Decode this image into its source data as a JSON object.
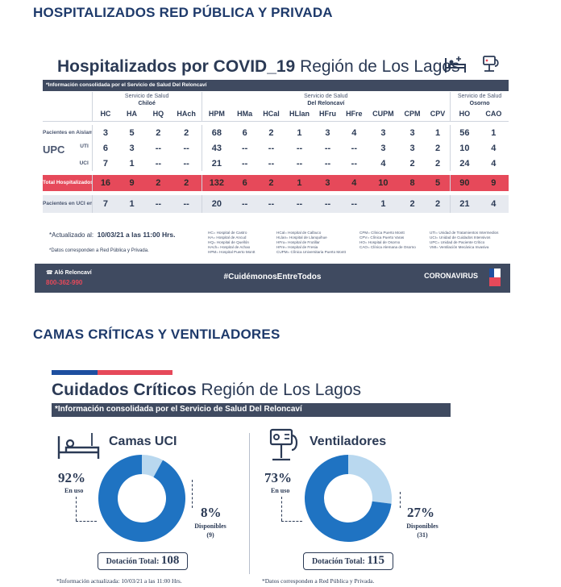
{
  "headings": {
    "hospitalized": "HOSPITALIZADOS RED PÚBLICA Y PRIVADA",
    "critical": "CAMAS CRÍTICAS Y VENTILADORES"
  },
  "card1": {
    "title_bold": "Hospitalizados por COVID_19",
    "title_light": " Región de Los Lagos",
    "info": "*Información consolidada por el Servicio de Salud Del Reloncaví",
    "services": [
      {
        "name": "Servicio de Salud",
        "sub": "Chiloé"
      },
      {
        "name": "Servicio de Salud",
        "sub": "Del Reloncaví"
      },
      {
        "name": "Servicio de Salud",
        "sub": "Osorno"
      }
    ],
    "columns": [
      "HC",
      "HA",
      "HQ",
      "HAch",
      "HPM",
      "HMa",
      "HCal",
      "HLlan",
      "HFru",
      "HFre",
      "CUPM",
      "CPM",
      "CPV",
      "HO",
      "CAO"
    ],
    "rows": {
      "aislamiento": {
        "label": "Pacientes en Aislamiento",
        "values": [
          "3",
          "5",
          "2",
          "2",
          "68",
          "6",
          "2",
          "1",
          "3",
          "4",
          "3",
          "3",
          "1",
          "56",
          "1"
        ]
      },
      "upc_label": "UPC",
      "uti": {
        "label": "UTI",
        "values": [
          "6",
          "3",
          "--",
          "--",
          "43",
          "--",
          "--",
          "--",
          "--",
          "--",
          "3",
          "3",
          "2",
          "10",
          "4"
        ]
      },
      "uci": {
        "label": "UCI",
        "values": [
          "7",
          "1",
          "--",
          "--",
          "21",
          "--",
          "--",
          "--",
          "--",
          "--",
          "4",
          "2",
          "2",
          "24",
          "4"
        ]
      },
      "total": {
        "label": "Total Hospitalizados",
        "values": [
          "16",
          "9",
          "2",
          "2",
          "132",
          "6",
          "2",
          "1",
          "3",
          "4",
          "10",
          "8",
          "5",
          "90",
          "9"
        ]
      },
      "vmi": {
        "label": "Pacientes en UCI en VMI",
        "values": [
          "7",
          "1",
          "--",
          "--",
          "20",
          "--",
          "--",
          "--",
          "--",
          "--",
          "1",
          "2",
          "2",
          "21",
          "4"
        ]
      }
    },
    "updated_label": "*Actualizado al:",
    "updated_value": "10/03/21 a las 11:00 Hrs.",
    "note": "*Datos corresponden a Red Pública y Privada.",
    "legend": [
      [
        "HC= Hospital de Castro",
        "HA= Hospital de Ancud",
        "HQ= Hospital de Quellón",
        "HAch= Hospital de Achao",
        "HPM= Hospital Puerto Montt"
      ],
      [
        "HCal= Hospital de Calbuco",
        "HLlan= Hospital de Llanquihue",
        "HFru= Hospital de Frutillar",
        "HFre= Hospital de Fresia",
        "CUPM= Clínica Universitaria Puerto Montt"
      ],
      [
        "CPM= Clínica Puerto Montt",
        "CPV= Clínica Puerto Varas",
        "HO= Hospital de Osorno",
        "CAO= Clínica Alemana de Osorno"
      ],
      [
        "UTI= Unidad de Tratamientos Intermedios",
        "UCI= Unidad de Cuidados Intensivos",
        "UPC= Unidad de Paciente Crítico",
        "VMI= Ventilación Mecánica Invasiva"
      ]
    ],
    "footer": {
      "left": "Aló Reloncaví",
      "phone": "800-362-990",
      "center": "#CuidémonosEntreTodos",
      "right": "CORONAVIRUS"
    }
  },
  "card2": {
    "title_bold": "Cuidados Críticos",
    "title_light": " Región de Los Lagos",
    "info": "*Información consolidada por el Servicio de Salud Del Reloncaví",
    "camas": {
      "title": "Camas UCI",
      "used_pct": "92%",
      "used_label": "En uso",
      "free_pct": "8%",
      "free_label": "Disponibles",
      "free_count": "(9)",
      "total_label": "Dotación Total:",
      "total_value": "108"
    },
    "ventiladores": {
      "title": "Ventiladores",
      "used_pct": "73%",
      "used_label": "En uso",
      "free_pct": "27%",
      "free_label": "Disponibles",
      "free_count": "(31)",
      "total_label": "Dotación Total:",
      "total_value": "115"
    },
    "foot_left": "*Información actualizada: 10/03/21 a las 11:00 Hrs.",
    "foot_right": "*Datos corresponden a Red Pública y Privada."
  },
  "chart_data": [
    {
      "type": "pie",
      "title": "Camas UCI",
      "categories": [
        "En uso",
        "Disponibles"
      ],
      "values": [
        92,
        8
      ],
      "colors": [
        "#1f73c2",
        "#b9d8ef"
      ]
    },
    {
      "type": "pie",
      "title": "Ventiladores",
      "categories": [
        "En uso",
        "Disponibles"
      ],
      "values": [
        73,
        27
      ],
      "colors": [
        "#1f73c2",
        "#b9d8ef"
      ]
    }
  ]
}
